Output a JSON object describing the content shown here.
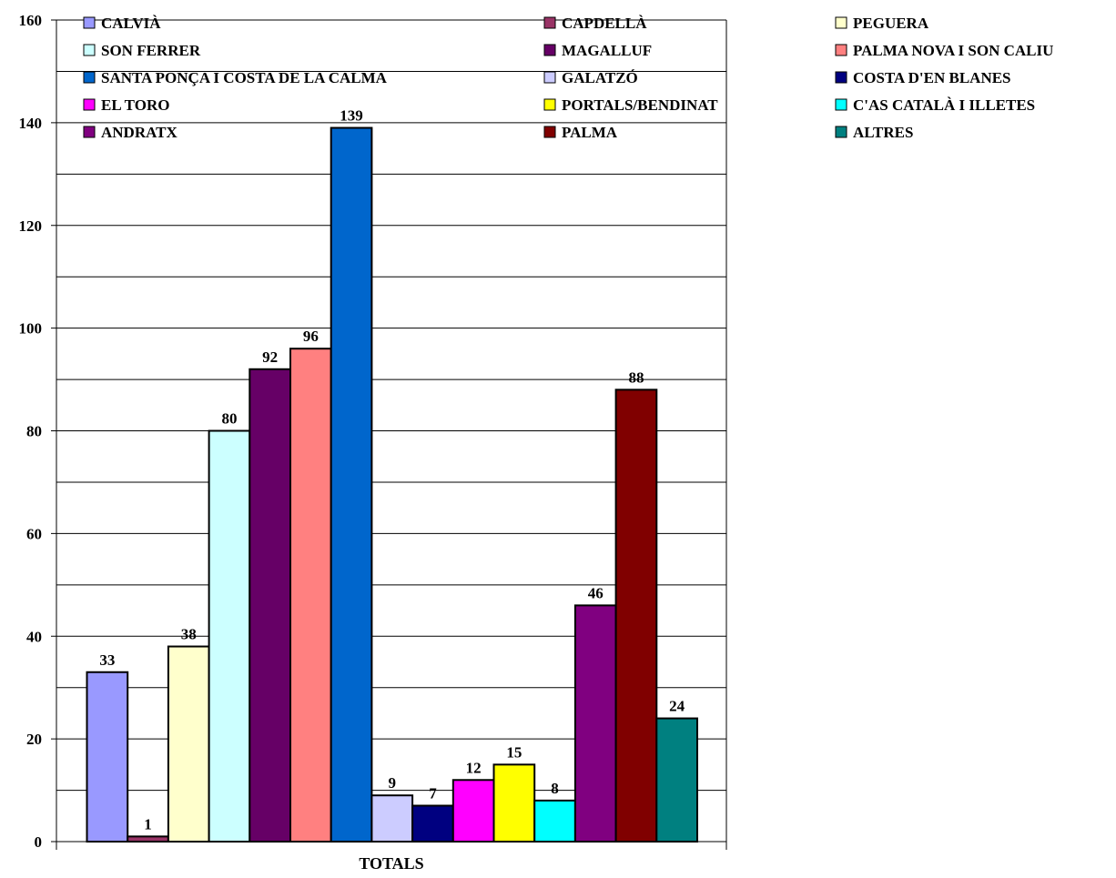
{
  "chart_data": {
    "type": "bar",
    "categories": [
      "TOTALS"
    ],
    "xlabel": "TOTALS",
    "ylabel": "",
    "title": "",
    "ylim": [
      0,
      160
    ],
    "yticks": [
      0,
      20,
      40,
      60,
      80,
      100,
      120,
      140,
      160
    ],
    "grid": true,
    "legend_position": "top",
    "series": [
      {
        "name": "CALVIÀ",
        "values": [
          33
        ],
        "color": "#9999FF"
      },
      {
        "name": "CAPDELLÀ",
        "values": [
          1
        ],
        "color": "#993366"
      },
      {
        "name": "PEGUERA",
        "values": [
          38
        ],
        "color": "#FFFFCC"
      },
      {
        "name": "SON FERRER",
        "values": [
          80
        ],
        "color": "#CCFFFF"
      },
      {
        "name": "MAGALLUF",
        "values": [
          92
        ],
        "color": "#660066"
      },
      {
        "name": "PALMA NOVA I SON CALIU",
        "values": [
          96
        ],
        "color": "#FF8080"
      },
      {
        "name": "SANTA PONÇA I COSTA DE LA CALMA",
        "values": [
          139
        ],
        "color": "#0066CC"
      },
      {
        "name": "GALATZÓ",
        "values": [
          9
        ],
        "color": "#CCCCFF"
      },
      {
        "name": "COSTA D'EN BLANES",
        "values": [
          7
        ],
        "color": "#000080"
      },
      {
        "name": "EL TORO",
        "values": [
          12
        ],
        "color": "#FF00FF"
      },
      {
        "name": "PORTALS/BENDINAT",
        "values": [
          15
        ],
        "color": "#FFFF00"
      },
      {
        "name": "C'AS CATALÀ I ILLETES",
        "values": [
          8
        ],
        "color": "#00FFFF"
      },
      {
        "name": "ANDRATX",
        "values": [
          46
        ],
        "color": "#800080"
      },
      {
        "name": "PALMA",
        "values": [
          88
        ],
        "color": "#800000"
      },
      {
        "name": "ALTRES",
        "values": [
          24
        ],
        "color": "#008080"
      }
    ]
  }
}
